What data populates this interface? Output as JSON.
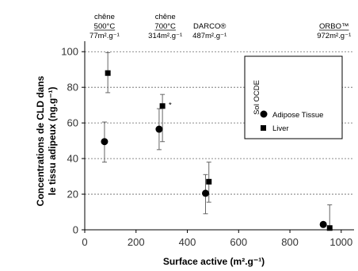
{
  "chart_data": {
    "type": "scatter",
    "xlabel": "Surface active (m².g⁻¹)",
    "ylabel_line1": "Concentrations de CLD dans",
    "ylabel_line2": "le tissu adipeux (ng.g⁻¹)",
    "xlim": [
      0,
      1050
    ],
    "ylim": [
      0,
      105
    ],
    "x_ticks": [
      0,
      200,
      400,
      600,
      800,
      1000
    ],
    "x_tick_labels": [
      "0",
      "200",
      "400",
      "600",
      "800",
      "1000"
    ],
    "y_ticks": [
      0,
      20,
      40,
      60,
      80,
      100
    ],
    "y_tick_labels": [
      "0",
      "20",
      "40",
      "60",
      "80",
      "100"
    ],
    "grid": "horizontal dotted",
    "legend_placement": "top-right",
    "legend_title": "Sol OCDE",
    "series": [
      {
        "name": "Adipose Tissue",
        "marker": "circle",
        "points": [
          {
            "x": 77,
            "y": 49.5,
            "err_low": 38,
            "err_high": 60.5
          },
          {
            "x": 290,
            "y": 56.5,
            "err_low": 45,
            "err_high": 68
          },
          {
            "x": 471,
            "y": 20.5,
            "err_low": 9,
            "err_high": 31
          },
          {
            "x": 930,
            "y": 3,
            "err_low": 3,
            "err_high": 3
          }
        ]
      },
      {
        "name": "Liver",
        "marker": "square",
        "points": [
          {
            "x": 90,
            "y": 88,
            "err_low": 77,
            "err_high": 99.5
          },
          {
            "x": 303,
            "y": 69.5,
            "err_low": 49.5,
            "err_high": 76
          },
          {
            "x": 484,
            "y": 27,
            "err_low": 15.5,
            "err_high": 38
          },
          {
            "x": 955,
            "y": 1,
            "err_low": 0,
            "err_high": 14
          }
        ]
      }
    ],
    "annotations": [
      {
        "x": 77,
        "lines": [
          "chêne",
          "500°C",
          "77m².g⁻¹"
        ],
        "underline": 1
      },
      {
        "x": 314,
        "lines": [
          "chêne",
          "700°C",
          "314m².g⁻¹"
        ],
        "underline": 1
      },
      {
        "x": 487,
        "lines": [
          "DARCO®",
          "487m².g⁻¹"
        ],
        "underline": -1
      },
      {
        "x": 972,
        "lines": [
          "ORBO™",
          "972m².g⁻¹"
        ],
        "underline": 0
      }
    ],
    "small_marks": [
      {
        "x": 315,
        "y": 70,
        "text": "*"
      }
    ]
  }
}
